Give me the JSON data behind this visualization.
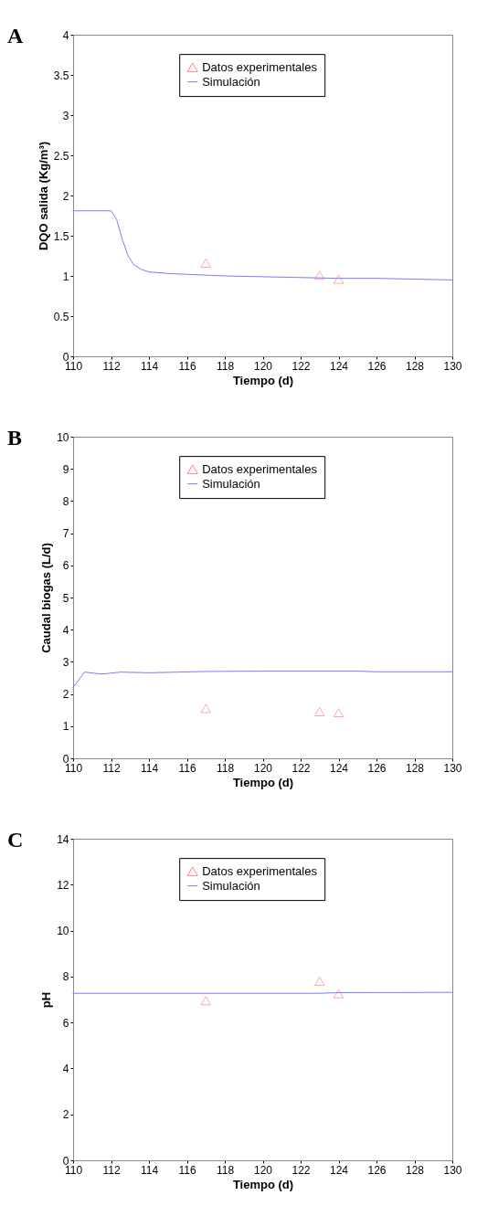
{
  "chart_data": [
    {
      "type": "line",
      "title": "A",
      "xlabel": "Tiempo (d)",
      "ylabel": "DQO salida (Kg/m³)",
      "xlim": [
        110,
        130
      ],
      "xticks": [
        110,
        112,
        114,
        116,
        118,
        120,
        122,
        124,
        126,
        128,
        130
      ],
      "ylim": [
        0,
        4
      ],
      "yticks": [
        0,
        0.5,
        1,
        1.5,
        2,
        2.5,
        3,
        3.5,
        4
      ],
      "grid": false,
      "legend": "top",
      "series": [
        {
          "name": "Datos experimentales",
          "type": "scatter",
          "marker": "triangle",
          "color": "#ff8080",
          "x": [
            117,
            123,
            124
          ],
          "values": [
            1.16,
            1.01,
            0.96
          ]
        },
        {
          "name": "Simulación",
          "type": "line",
          "color": "#7b7bff",
          "x": [
            110,
            112,
            112.3,
            112.6,
            112.9,
            113.2,
            113.6,
            114,
            115,
            116,
            118,
            120,
            122,
            124,
            126,
            128,
            130
          ],
          "values": [
            1.81,
            1.81,
            1.7,
            1.45,
            1.25,
            1.14,
            1.08,
            1.05,
            1.03,
            1.02,
            1.0,
            0.99,
            0.98,
            0.97,
            0.97,
            0.96,
            0.95
          ]
        }
      ]
    },
    {
      "type": "line",
      "title": "B",
      "xlabel": "Tiempo (d)",
      "ylabel": "Caudal biogas (L/d)",
      "xlim": [
        110,
        130
      ],
      "xticks": [
        110,
        112,
        114,
        116,
        118,
        120,
        122,
        124,
        126,
        128,
        130
      ],
      "ylim": [
        0,
        10
      ],
      "yticks": [
        0,
        1,
        2,
        3,
        4,
        5,
        6,
        7,
        8,
        9,
        10
      ],
      "grid": false,
      "legend": "top",
      "series": [
        {
          "name": "Datos experimentales",
          "type": "scatter",
          "marker": "triangle",
          "color": "#ff8080",
          "x": [
            117,
            123,
            124
          ],
          "values": [
            1.55,
            1.45,
            1.42
          ]
        },
        {
          "name": "Simulación",
          "type": "line",
          "color": "#7b7bff",
          "x": [
            110,
            110.6,
            111.5,
            112.5,
            114,
            117,
            120,
            125,
            126,
            130
          ],
          "values": [
            2.2,
            2.68,
            2.62,
            2.68,
            2.66,
            2.7,
            2.71,
            2.71,
            2.69,
            2.69
          ]
        }
      ]
    },
    {
      "type": "line",
      "title": "C",
      "xlabel": "Tiempo (d)",
      "ylabel": "pH",
      "xlim": [
        110,
        130
      ],
      "xticks": [
        110,
        112,
        114,
        116,
        118,
        120,
        122,
        124,
        126,
        128,
        130
      ],
      "ylim": [
        0,
        14
      ],
      "yticks": [
        0,
        2,
        4,
        6,
        8,
        10,
        12,
        14
      ],
      "grid": false,
      "legend": "top",
      "series": [
        {
          "name": "Datos experimentales",
          "type": "scatter",
          "marker": "triangle",
          "color": "#ff8080",
          "x": [
            117,
            123,
            124
          ],
          "values": [
            6.95,
            7.8,
            7.25
          ]
        },
        {
          "name": "Simulación",
          "type": "line",
          "color": "#7b7bff",
          "x": [
            110,
            123,
            124,
            130
          ],
          "values": [
            7.27,
            7.27,
            7.3,
            7.31
          ]
        }
      ]
    }
  ]
}
